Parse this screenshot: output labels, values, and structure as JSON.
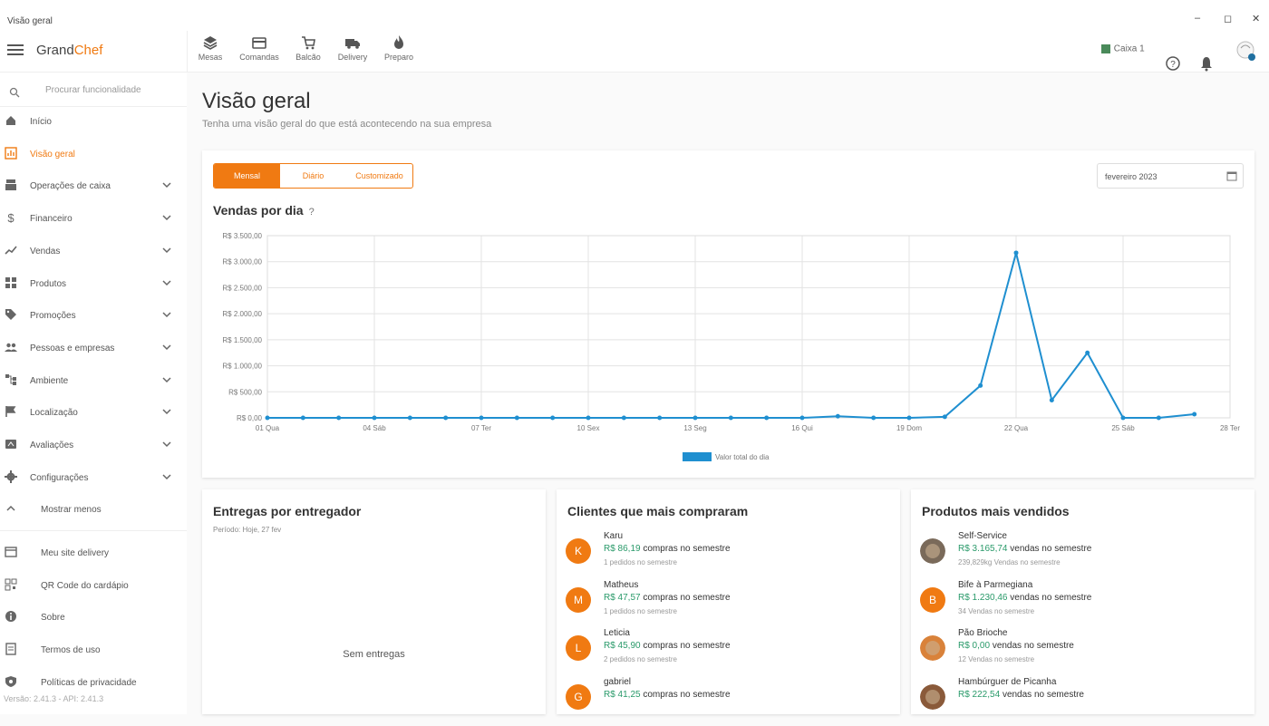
{
  "window": {
    "title": "Visão geral",
    "minimize": "–",
    "maximize": "◻",
    "close": "✕"
  },
  "app": {
    "logo_part1": "Grand",
    "logo_part2": "Chef"
  },
  "topnav": [
    {
      "label": "Mesas",
      "icon": "layers-icon"
    },
    {
      "label": "Comandas",
      "icon": "card-icon"
    },
    {
      "label": "Balcão",
      "icon": "cart-icon"
    },
    {
      "label": "Delivery",
      "icon": "truck-icon"
    },
    {
      "label": "Preparo",
      "icon": "fire-icon"
    }
  ],
  "topright": {
    "cashier": "Caixa 1"
  },
  "sidebar": {
    "search_placeholder": "Procurar funcionalidade",
    "items": [
      {
        "label": "Início",
        "icon": "home-icon",
        "expand": false,
        "active": false
      },
      {
        "label": "Visão geral",
        "icon": "dashboard-icon",
        "expand": false,
        "active": true
      },
      {
        "label": "Operações de caixa",
        "icon": "register-icon",
        "expand": true,
        "active": false
      },
      {
        "label": "Financeiro",
        "icon": "dollar-icon",
        "expand": true,
        "active": false
      },
      {
        "label": "Vendas",
        "icon": "trending-icon",
        "expand": true,
        "active": false
      },
      {
        "label": "Produtos",
        "icon": "grid-icon",
        "expand": true,
        "active": false
      },
      {
        "label": "Promoções",
        "icon": "tag-icon",
        "expand": true,
        "active": false
      },
      {
        "label": "Pessoas e empresas",
        "icon": "people-icon",
        "expand": true,
        "active": false
      },
      {
        "label": "Ambiente",
        "icon": "tree-icon",
        "expand": true,
        "active": false
      },
      {
        "label": "Localização",
        "icon": "flag-icon",
        "expand": true,
        "active": false
      },
      {
        "label": "Avaliações",
        "icon": "rating-icon",
        "expand": true,
        "active": false
      },
      {
        "label": "Configurações",
        "icon": "gear-icon",
        "expand": true,
        "active": false
      }
    ],
    "show_less": "Mostrar menos",
    "extras": [
      {
        "label": "Meu site delivery",
        "icon": "store-icon"
      },
      {
        "label": "QR Code do cardápio",
        "icon": "qr-icon"
      },
      {
        "label": "Sobre",
        "icon": "info-icon"
      },
      {
        "label": "Termos de uso",
        "icon": "doc-icon"
      },
      {
        "label": "Políticas de privacidade",
        "icon": "shield-icon"
      }
    ],
    "version": "Versão: 2.41.3 - API: 2.41.3"
  },
  "page": {
    "title": "Visão geral",
    "subtitle": "Tenha uma visão geral do que está acontecendo na sua empresa"
  },
  "period_tabs": [
    {
      "label": "Mensal",
      "active": true
    },
    {
      "label": "Diário",
      "active": false
    },
    {
      "label": "Customizado",
      "active": false
    }
  ],
  "date_value": "fevereiro 2023",
  "sales_chart": {
    "title": "Vendas por dia",
    "help_icon": "?"
  },
  "chart_data": {
    "type": "line",
    "title": "Vendas por dia",
    "x_ticks": [
      "01 Qua",
      "04 Sáb",
      "07 Ter",
      "10 Sex",
      "13 Seg",
      "16 Qui",
      "19 Dom",
      "22 Qua",
      "25 Sáb",
      "28 Ter"
    ],
    "y_ticks": [
      "R$ 0,00",
      "R$ 500,00",
      "R$ 1.000,00",
      "R$ 1.500,00",
      "R$ 2.000,00",
      "R$ 2.500,00",
      "R$ 3.000,00",
      "R$ 3.500,00"
    ],
    "ylim": [
      0,
      3500
    ],
    "xlim": [
      1,
      28
    ],
    "series": [
      {
        "name": "Valor total do dia",
        "color": "#1f8fd0",
        "x": [
          1,
          2,
          3,
          4,
          5,
          6,
          7,
          8,
          9,
          10,
          11,
          12,
          13,
          14,
          15,
          16,
          17,
          18,
          19,
          20,
          21,
          22,
          23,
          24,
          25,
          26,
          27
        ],
        "y": [
          0,
          0,
          0,
          0,
          0,
          0,
          0,
          0,
          0,
          0,
          0,
          0,
          0,
          0,
          0,
          0,
          30,
          0,
          0,
          20,
          620,
          3170,
          340,
          1250,
          0,
          0,
          70
        ]
      }
    ],
    "grid": true,
    "legend": "bottom-center"
  },
  "deliveries": {
    "title": "Entregas por entregador",
    "period": "Período: Hoje, 27 fev",
    "empty": "Sem entregas"
  },
  "top_clients": {
    "title": "Clientes que mais compraram",
    "items": [
      {
        "initial": "K",
        "name": "Karu",
        "amount": "R$ 86,19",
        "suffix": "compras no semestre",
        "sub": "1 pedidos no semestre"
      },
      {
        "initial": "M",
        "name": "Matheus",
        "amount": "R$ 47,57",
        "suffix": "compras no semestre",
        "sub": "1 pedidos no semestre"
      },
      {
        "initial": "L",
        "name": "Leticia",
        "amount": "R$ 45,90",
        "suffix": "compras no semestre",
        "sub": "2 pedidos no semestre"
      },
      {
        "initial": "G",
        "name": "gabriel",
        "amount": "R$ 41,25",
        "suffix": "compras no semestre",
        "sub": ""
      }
    ]
  },
  "top_products": {
    "title": "Produtos mais vendidos",
    "items": [
      {
        "initial": "",
        "name": "Self-Service",
        "amount": "R$ 3.165,74",
        "suffix": "vendas no semestre",
        "sub": "239,829kg Vendas no semestre",
        "photo": "#7a6a5a"
      },
      {
        "initial": "B",
        "name": "Bife à Parmegiana",
        "amount": "R$ 1.230,46",
        "suffix": "vendas no semestre",
        "sub": "34 Vendas no semestre",
        "photo": ""
      },
      {
        "initial": "",
        "name": "Pão Brioche",
        "amount": "R$ 0,00",
        "suffix": "vendas no semestre",
        "sub": "12 Vendas no semestre",
        "photo": "#d9823a"
      },
      {
        "initial": "",
        "name": "Hambúrguer de Picanha",
        "amount": "R$ 222,54",
        "suffix": "vendas no semestre",
        "sub": "",
        "photo": "#8a5a3a"
      }
    ]
  },
  "colors": {
    "accent": "#f07a12",
    "money": "#2a9a6a",
    "line": "#1f8fd0"
  }
}
